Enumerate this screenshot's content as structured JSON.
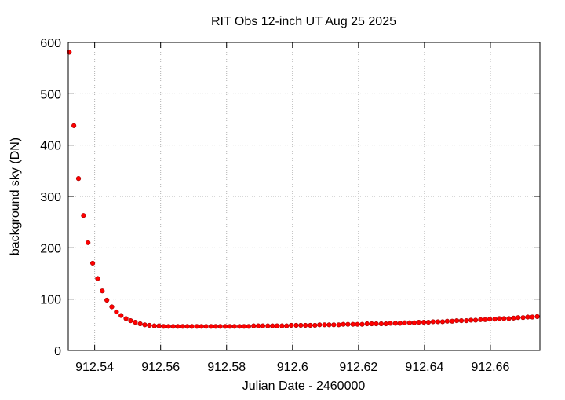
{
  "chart_data": {
    "type": "scatter",
    "title": "RIT Obs 12-inch UT Aug 25 2025",
    "xlabel": "Julian Date - 2460000",
    "ylabel": "background sky (DN)",
    "xlim": [
      912.532,
      912.675
    ],
    "ylim": [
      0,
      600
    ],
    "xticks": [
      912.54,
      912.56,
      912.58,
      912.6,
      912.62,
      912.64,
      912.66
    ],
    "xtick_labels": [
      "912.54",
      "912.56",
      "912.58",
      "912.6",
      "912.62",
      "912.64",
      "912.66"
    ],
    "yticks": [
      0,
      100,
      200,
      300,
      400,
      500,
      600
    ],
    "ytick_labels": [
      "0",
      "100",
      "200",
      "300",
      "400",
      "500",
      "600"
    ],
    "grid": true,
    "marker_color": "#ff0000",
    "x": [
      912.5323,
      912.5337,
      912.5351,
      912.5366,
      912.538,
      912.5394,
      912.5409,
      912.5423,
      912.5437,
      912.5452,
      912.5466,
      912.548,
      912.5495,
      912.5509,
      912.5523,
      912.5538,
      912.5552,
      912.5566,
      912.5581,
      912.5595,
      912.5609,
      912.5624,
      912.5638,
      912.5652,
      912.5667,
      912.5681,
      912.5695,
      912.571,
      912.5724,
      912.5738,
      912.5753,
      912.5767,
      912.5781,
      912.5796,
      912.581,
      912.5824,
      912.5839,
      912.5853,
      912.5867,
      912.5882,
      912.5896,
      912.591,
      912.5925,
      912.5939,
      912.5953,
      912.5968,
      912.5982,
      912.5996,
      912.6011,
      912.6025,
      912.6039,
      912.6054,
      912.6068,
      912.6082,
      912.6097,
      912.6111,
      912.6125,
      912.614,
      912.6154,
      912.6168,
      912.6183,
      912.6197,
      912.6211,
      912.6226,
      912.624,
      912.6254,
      912.6269,
      912.6283,
      912.6297,
      912.6312,
      912.6326,
      912.634,
      912.6355,
      912.6369,
      912.6383,
      912.6398,
      912.6412,
      912.6426,
      912.6441,
      912.6455,
      912.6469,
      912.6484,
      912.6498,
      912.6512,
      912.6527,
      912.6541,
      912.6555,
      912.657,
      912.6584,
      912.6598,
      912.6613,
      912.6627,
      912.6641,
      912.6656,
      912.667,
      912.6684,
      912.6699,
      912.6713,
      912.6727,
      912.6742
    ],
    "y": [
      581,
      438,
      335,
      263,
      210,
      170,
      140,
      116,
      98,
      85,
      75,
      68,
      62,
      58,
      55,
      52,
      50,
      49,
      48,
      48,
      47,
      47,
      47,
      47,
      47,
      47,
      47,
      47,
      47,
      47,
      47,
      47,
      47,
      47,
      47,
      47,
      47,
      47,
      47,
      48,
      48,
      48,
      48,
      48,
      48,
      48,
      48,
      49,
      49,
      49,
      49,
      49,
      49,
      50,
      50,
      50,
      50,
      50,
      51,
      51,
      51,
      51,
      51,
      52,
      52,
      52,
      52,
      52,
      53,
      53,
      53,
      54,
      54,
      54,
      55,
      55,
      55,
      56,
      56,
      56,
      57,
      57,
      58,
      58,
      58,
      59,
      59,
      60,
      60,
      61,
      61,
      62,
      62,
      62,
      63,
      64,
      64,
      65,
      65,
      66
    ]
  }
}
